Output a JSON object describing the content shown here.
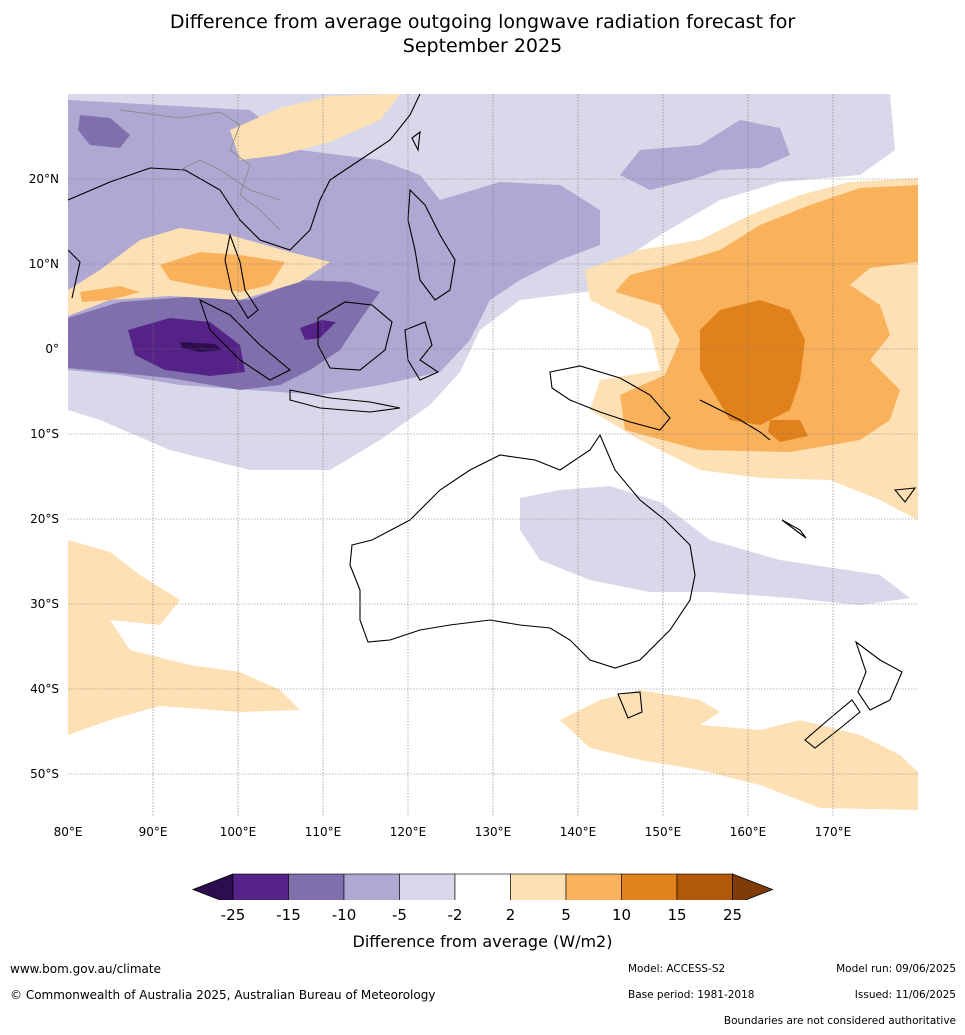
{
  "title": {
    "line1": "Difference from average outgoing longwave radiation forecast for",
    "line2": "September 2025"
  },
  "map": {
    "lon_ticks": [
      "80°E",
      "90°E",
      "100°E",
      "110°E",
      "120°E",
      "130°E",
      "140°E",
      "150°E",
      "160°E",
      "170°E"
    ],
    "lat_ticks": [
      "20°N",
      "10°N",
      "0°",
      "10°S",
      "20°S",
      "30°S",
      "40°S",
      "50°S"
    ]
  },
  "colorbar": {
    "title": "Difference from average (W/m2)",
    "labels": [
      "-25",
      "-15",
      "-10",
      "-5",
      "-2",
      "2",
      "5",
      "10",
      "15",
      "25"
    ],
    "colors": [
      "#2d0d4f",
      "#552287",
      "#7f70ad",
      "#afa8d2",
      "#d8d8ea",
      "#ffffff",
      "#fde0b4",
      "#f9b15b",
      "#e1811b",
      "#b15909",
      "#7f3b08"
    ]
  },
  "footer": {
    "url": "www.bom.gov.au/climate",
    "copyright": "© Commonwealth of Australia 2025, Australian Bureau of Meteorology",
    "model": "Model: ACCESS-S2",
    "base_period": "Base period: 1981-2018",
    "model_run": "Model run: 09/06/2025",
    "issued": "Issued: 11/06/2025",
    "disclaimer": "Boundaries are not considered authoritative"
  }
}
